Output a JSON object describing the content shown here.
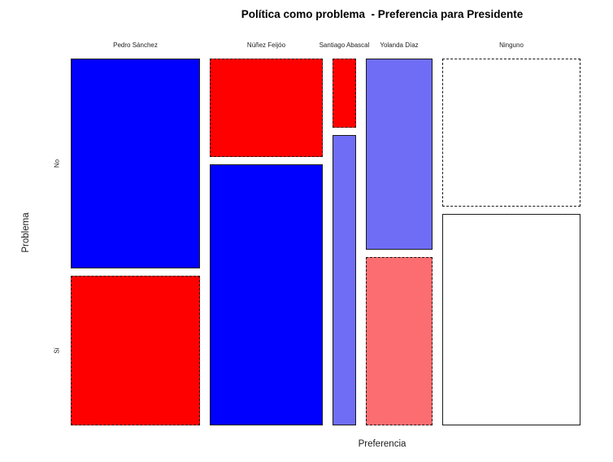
{
  "chart_data": {
    "type": "mosaic",
    "title": "Política como problema  - Preferencia para Presidente",
    "xlabel": "Preferencia",
    "ylabel": "Problema",
    "row_axis": "Problema",
    "column_axis": "Preferencia",
    "row_categories": [
      "No",
      "Sí"
    ],
    "shading": "pearson-residuals (solid border = positive residual, dashed border = negative residual)",
    "legend": "none",
    "columns": [
      {
        "label": "Pedro Sánchez",
        "width_share": 0.276,
        "cells": [
          {
            "row": "No",
            "share_within_column": 0.584,
            "fill": "#0000ff",
            "border_style": "solid"
          },
          {
            "row": "Sí",
            "share_within_column": 0.416,
            "fill": "#ff0000",
            "border_style": "dashed"
          }
        ]
      },
      {
        "label": "Núñez Feijóo",
        "width_share": 0.241,
        "cells": [
          {
            "row": "No",
            "share_within_column": 0.274,
            "fill": "#ff0000",
            "border_style": "dashed"
          },
          {
            "row": "Sí",
            "share_within_column": 0.726,
            "fill": "#0000ff",
            "border_style": "solid"
          }
        ]
      },
      {
        "label": "Santiago Abascal",
        "width_share": 0.05,
        "cells": [
          {
            "row": "No",
            "share_within_column": 0.192,
            "fill": "#ff0000",
            "border_style": "dashed"
          },
          {
            "row": "Sí",
            "share_within_column": 0.808,
            "fill": "#6f6df6",
            "border_style": "solid"
          }
        ]
      },
      {
        "label": "Yolanda Díaz",
        "width_share": 0.142,
        "cells": [
          {
            "row": "No",
            "share_within_column": 0.532,
            "fill": "#6f6df6",
            "border_style": "solid"
          },
          {
            "row": "Sí",
            "share_within_column": 0.468,
            "fill": "#fb6d70",
            "border_style": "dashed"
          }
        ]
      },
      {
        "label": "Ninguno",
        "width_share": 0.295,
        "cells": [
          {
            "row": "No",
            "share_within_column": 0.412,
            "fill": "#ffffff",
            "border_style": "dashed"
          },
          {
            "row": "Sí",
            "share_within_column": 0.588,
            "fill": "#ffffff",
            "border_style": "solid"
          }
        ]
      }
    ],
    "colors": {
      "residual_positive_high": "#0000ff",
      "residual_negative_high": "#ff0000",
      "residual_positive_mid": "#6f6df6",
      "residual_negative_mid": "#fb6d70",
      "residual_neutral": "#ffffff",
      "cell_border": "#1a1a1a",
      "background": "#ffffff"
    }
  }
}
